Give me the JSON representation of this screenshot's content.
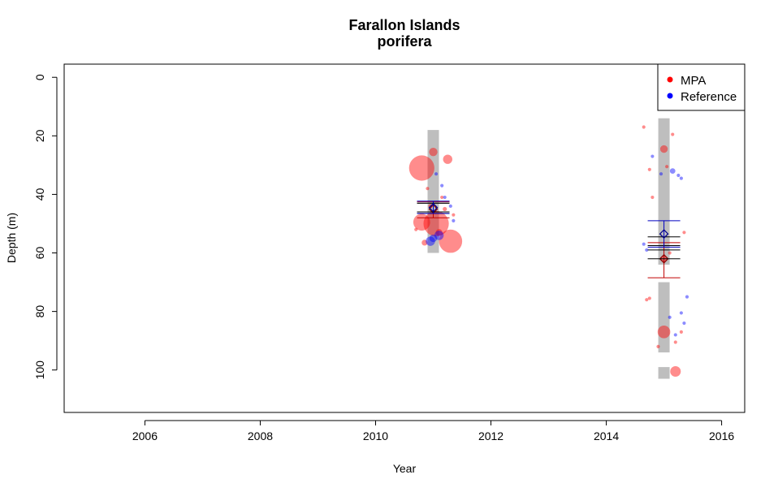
{
  "chart_data": {
    "type": "scatter",
    "title": "Farallon Islands",
    "subtitle": "porifera",
    "xlabel": "Year",
    "ylabel": "Depth (m)",
    "xlim": [
      2004.6,
      2016.4
    ],
    "ylim": [
      114.5,
      -4.5
    ],
    "y_reversed": true,
    "xticks": [
      2006,
      2008,
      2010,
      2012,
      2014,
      2016
    ],
    "yticks": [
      0,
      20,
      40,
      60,
      80,
      100
    ],
    "grid": false,
    "legend": {
      "placement": "top-right",
      "entries": [
        {
          "label": "MPA",
          "color": "#ff0000"
        },
        {
          "label": "Reference",
          "color": "#0000ff"
        }
      ]
    },
    "sampled_depth_ranges": [
      {
        "x": 2011.0,
        "ranges": [
          [
            18,
            60
          ]
        ]
      },
      {
        "x": 2015.0,
        "ranges": [
          [
            14,
            64
          ],
          [
            70,
            94
          ],
          [
            99,
            103
          ]
        ]
      }
    ],
    "series": [
      {
        "name": "MPA",
        "color": "#ff0000",
        "points": [
          {
            "x": 2010.8,
            "y": 31,
            "size": 6
          },
          {
            "x": 2010.8,
            "y": 49.5,
            "size": 4
          },
          {
            "x": 2011.05,
            "y": 50,
            "size": 6
          },
          {
            "x": 2011.3,
            "y": 56,
            "size": 5.5
          },
          {
            "x": 2011.0,
            "y": 25.5,
            "size": 2
          },
          {
            "x": 2011.25,
            "y": 28,
            "size": 2.2
          },
          {
            "x": 2010.85,
            "y": 56.5,
            "size": 1.4
          },
          {
            "x": 2011.1,
            "y": 53,
            "size": 1.6
          },
          {
            "x": 2010.95,
            "y": 44,
            "size": 1
          },
          {
            "x": 2011.2,
            "y": 45,
            "size": 1
          },
          {
            "x": 2011.15,
            "y": 41,
            "size": 0.8
          },
          {
            "x": 2010.9,
            "y": 38,
            "size": 0.8
          },
          {
            "x": 2010.7,
            "y": 52,
            "size": 0.8
          },
          {
            "x": 2011.35,
            "y": 47,
            "size": 0.8
          },
          {
            "x": 2015.0,
            "y": 24.5,
            "size": 1.8
          },
          {
            "x": 2015.0,
            "y": 87,
            "size": 3
          },
          {
            "x": 2015.2,
            "y": 100.5,
            "size": 2.5
          },
          {
            "x": 2015.0,
            "y": 62,
            "size": 1.4
          },
          {
            "x": 2014.65,
            "y": 17,
            "size": 0.8
          },
          {
            "x": 2014.75,
            "y": 31.5,
            "size": 0.8
          },
          {
            "x": 2014.8,
            "y": 41,
            "size": 0.8
          },
          {
            "x": 2015.15,
            "y": 19.5,
            "size": 0.8
          },
          {
            "x": 2015.1,
            "y": 60,
            "size": 0.8
          },
          {
            "x": 2014.7,
            "y": 76,
            "size": 0.8
          },
          {
            "x": 2014.75,
            "y": 75.5,
            "size": 0.8
          },
          {
            "x": 2015.35,
            "y": 53,
            "size": 0.8
          },
          {
            "x": 2015.3,
            "y": 87,
            "size": 0.8
          },
          {
            "x": 2015.05,
            "y": 30.5,
            "size": 0.8
          },
          {
            "x": 2015.2,
            "y": 90.5,
            "size": 0.8
          },
          {
            "x": 2014.9,
            "y": 92,
            "size": 0.8
          }
        ],
        "mean_markers": [
          {
            "x": 2011.0,
            "mean": 45,
            "ci_low": 42.5,
            "ci_high": 48,
            "sd_low": 43,
            "sd_high": 46.5
          },
          {
            "x": 2015.0,
            "mean": 62,
            "ci_low": 56.5,
            "ci_high": 68.5,
            "sd_low": 57.5,
            "sd_high": 59
          }
        ]
      },
      {
        "name": "Reference",
        "color": "#0000ff",
        "points": [
          {
            "x": 2010.95,
            "y": 56,
            "size": 2.2
          },
          {
            "x": 2011.1,
            "y": 54,
            "size": 2.2
          },
          {
            "x": 2011.0,
            "y": 55,
            "size": 1.8
          },
          {
            "x": 2011.15,
            "y": 37,
            "size": 0.8
          },
          {
            "x": 2011.2,
            "y": 41,
            "size": 0.8
          },
          {
            "x": 2011.3,
            "y": 44,
            "size": 0.8
          },
          {
            "x": 2011.35,
            "y": 49,
            "size": 0.8
          },
          {
            "x": 2011.05,
            "y": 33,
            "size": 0.8
          },
          {
            "x": 2015.15,
            "y": 32,
            "size": 1.3
          },
          {
            "x": 2014.8,
            "y": 27,
            "size": 0.8
          },
          {
            "x": 2014.65,
            "y": 57,
            "size": 0.8
          },
          {
            "x": 2014.7,
            "y": 59,
            "size": 0.8
          },
          {
            "x": 2015.25,
            "y": 33.5,
            "size": 0.8
          },
          {
            "x": 2015.3,
            "y": 34.5,
            "size": 0.8
          },
          {
            "x": 2015.35,
            "y": 84,
            "size": 0.8
          },
          {
            "x": 2015.4,
            "y": 75,
            "size": 0.8
          },
          {
            "x": 2015.1,
            "y": 82,
            "size": 0.8
          },
          {
            "x": 2015.3,
            "y": 80.5,
            "size": 0.8
          },
          {
            "x": 2014.95,
            "y": 33,
            "size": 0.8
          },
          {
            "x": 2015.2,
            "y": 88,
            "size": 0.8
          }
        ],
        "mean_markers": [
          {
            "x": 2011.0,
            "mean": 44.5,
            "ci_low": 42.3,
            "ci_high": 46.5,
            "sd_low": 43,
            "sd_high": 46
          },
          {
            "x": 2015.0,
            "mean": 53.5,
            "ci_low": 49,
            "ci_high": 58,
            "sd_low": 54.5,
            "sd_high": 62
          }
        ]
      }
    ]
  }
}
